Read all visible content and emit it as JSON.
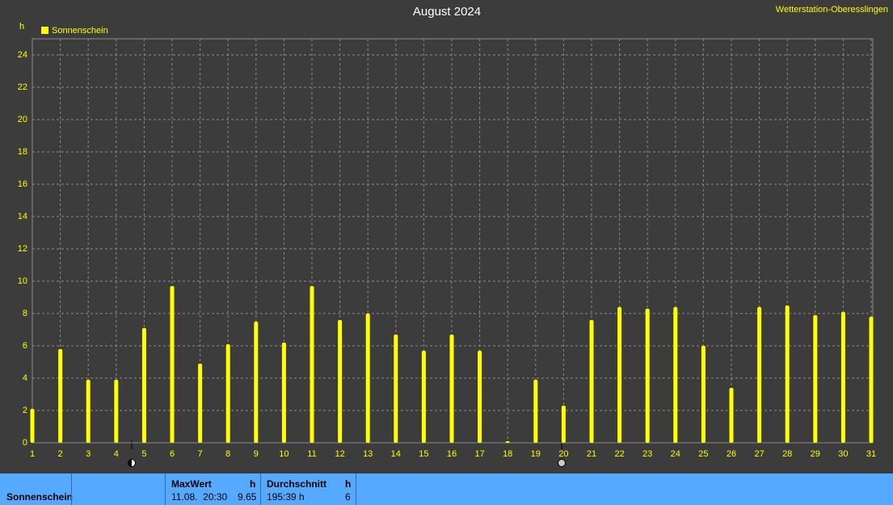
{
  "chart_data": {
    "type": "bar",
    "title": "August 2024",
    "station": "Wetterstation-Oberesslingen",
    "y_label": "h",
    "categories": [
      1,
      2,
      3,
      4,
      5,
      6,
      7,
      8,
      9,
      10,
      11,
      12,
      13,
      14,
      15,
      16,
      17,
      18,
      19,
      20,
      21,
      22,
      23,
      24,
      25,
      26,
      27,
      28,
      29,
      30,
      31
    ],
    "series": [
      {
        "name": "Sonnenschein",
        "color": "#ffff00",
        "values": [
          2.1,
          5.8,
          3.9,
          3.9,
          7.1,
          9.7,
          4.9,
          6.1,
          7.5,
          6.2,
          9.7,
          7.6,
          8.0,
          6.7,
          5.7,
          6.7,
          5.7,
          0.1,
          3.9,
          2.3,
          7.6,
          8.4,
          8.3,
          8.4,
          6.0,
          3.4,
          8.4,
          8.5,
          7.9,
          8.1,
          7.8
        ]
      }
    ],
    "ylim": [
      0,
      25
    ],
    "yticks": [
      0,
      2,
      4,
      6,
      8,
      10,
      12,
      14,
      16,
      18,
      20,
      22,
      24
    ],
    "grid": true
  },
  "summary": {
    "row_label": "Sonnenschein",
    "max_label": "MaxWert",
    "max_unit": "h",
    "max_time": "11.08.  20:30",
    "max_value": "9.65",
    "avg_label": "Durchschnitt",
    "avg_unit": "h",
    "avg_value": "195:39 h",
    "avg_count": "6"
  }
}
